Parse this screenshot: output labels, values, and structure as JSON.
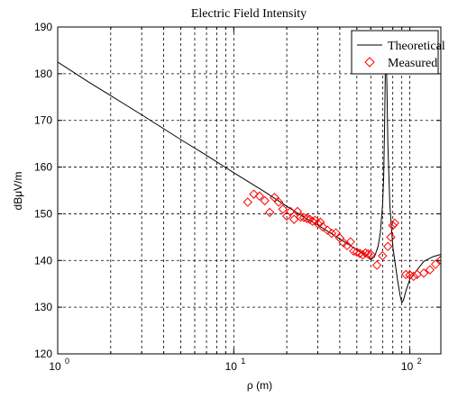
{
  "chart_data": {
    "type": "line",
    "title": "Electric Field Intensity",
    "xlabel": "ρ (m)",
    "ylabel": "dBμV/m",
    "x_scale": "log",
    "xlim": [
      1,
      150
    ],
    "ylim": [
      120,
      190
    ],
    "yticks": [
      120,
      130,
      140,
      150,
      160,
      170,
      180,
      190
    ],
    "xtick_labels": [
      {
        "value": 1,
        "base": "10",
        "exp": "0"
      },
      {
        "value": 10,
        "base": "10",
        "exp": "1"
      },
      {
        "value": 100,
        "base": "10",
        "exp": "2"
      }
    ],
    "grid": true,
    "legend_position": "top-right",
    "series": [
      {
        "name": "Theoretical",
        "style": "line",
        "color": "#000000",
        "x": [
          1,
          1.5,
          2,
          3,
          5,
          7,
          10,
          15,
          20,
          25,
          30,
          35,
          40,
          45,
          50,
          55,
          58,
          60,
          63,
          66,
          68,
          70,
          71,
          72,
          73,
          74,
          75,
          77,
          80,
          85,
          88,
          90,
          92,
          95,
          100,
          110,
          120,
          135,
          150
        ],
        "y": [
          182.5,
          178.2,
          175.3,
          171.2,
          165.9,
          162.5,
          158.8,
          154.7,
          151.6,
          149.3,
          147.6,
          146.0,
          144.6,
          143.4,
          142.3,
          141.3,
          140.6,
          140.2,
          140.8,
          143.0,
          146.0,
          152.0,
          158.0,
          170.0,
          188.0,
          178.0,
          165.0,
          152.0,
          143.0,
          136.0,
          132.5,
          131.0,
          131.5,
          133.5,
          136.0,
          138.0,
          139.8,
          140.8,
          141.3
        ]
      },
      {
        "name": "Measured",
        "style": "marker",
        "marker": "diamond",
        "color": "#ff0000",
        "x": [
          12,
          13,
          14,
          15,
          16,
          17,
          18,
          19,
          20,
          21,
          22,
          23,
          24,
          25,
          26,
          27,
          28,
          29,
          30,
          31,
          32,
          34,
          36,
          38,
          40,
          42,
          44,
          46,
          48,
          50,
          52,
          54,
          56,
          58,
          60,
          65,
          70,
          75,
          78,
          80,
          82,
          95,
          100,
          105,
          110,
          120,
          130,
          140,
          150
        ],
        "y": [
          152.5,
          154.2,
          153.8,
          152.8,
          150.3,
          153.5,
          152.5,
          151.0,
          149.5,
          150.5,
          148.8,
          150.5,
          149.3,
          149.2,
          149.0,
          148.8,
          148.4,
          148.6,
          147.9,
          148.2,
          147.2,
          146.5,
          145.8,
          145.9,
          144.8,
          143.8,
          143.2,
          144.0,
          142.0,
          141.8,
          141.5,
          141.2,
          141.6,
          141.4,
          141.3,
          139.0,
          141.0,
          143.0,
          145.0,
          147.5,
          148.0,
          137.0,
          136.9,
          136.6,
          137.0,
          137.3,
          138.0,
          139.2,
          140.1
        ]
      }
    ]
  }
}
